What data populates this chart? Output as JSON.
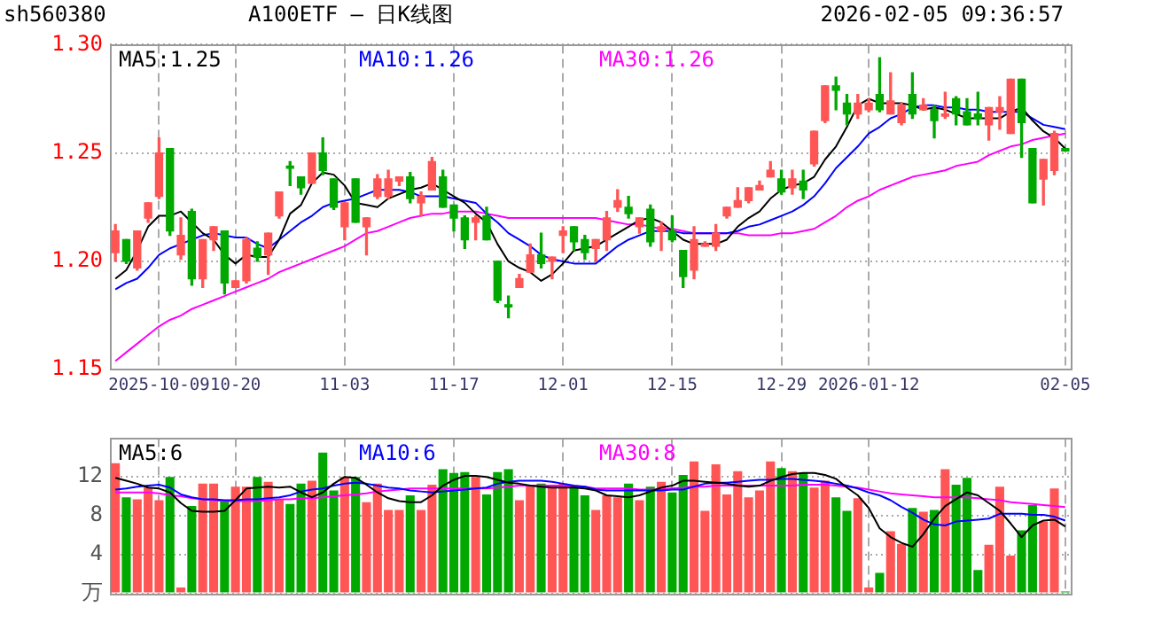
{
  "chart_data": [
    {
      "type": "candlestick",
      "title": "A100ETF — 日K线图",
      "annotations": [
        "sh560380",
        "2026-02-05 09:36:57"
      ],
      "categories": [
        null,
        null,
        null,
        null,
        "2025-10-09",
        null,
        null,
        null,
        null,
        null,
        null,
        "10-20",
        null,
        null,
        null,
        null,
        null,
        null,
        null,
        null,
        null,
        "11-03",
        null,
        null,
        null,
        null,
        null,
        null,
        null,
        null,
        null,
        "11-17",
        null,
        null,
        null,
        null,
        null,
        null,
        null,
        null,
        null,
        "12-01",
        null,
        null,
        null,
        null,
        null,
        null,
        null,
        null,
        null,
        "12-15",
        null,
        null,
        null,
        null,
        null,
        null,
        null,
        null,
        null,
        "12-29",
        null,
        null,
        null,
        null,
        null,
        null,
        null,
        "2026-01-12",
        null,
        null,
        null,
        null,
        null,
        null,
        null,
        null,
        null,
        null,
        null,
        null,
        null,
        null,
        null,
        null,
        null,
        "02-05"
      ],
      "ohlc": [
        [
          1.204,
          1.217,
          1.2,
          1.214
        ],
        [
          1.21,
          1.21,
          1.199,
          1.2
        ],
        [
          1.197,
          1.214,
          1.196,
          1.214
        ],
        [
          1.22,
          1.227,
          1.218,
          1.227
        ],
        [
          1.23,
          1.257,
          1.229,
          1.25
        ],
        [
          1.252,
          1.252,
          1.212,
          1.214
        ],
        [
          1.203,
          1.22,
          1.201,
          1.212
        ],
        [
          1.223,
          1.224,
          1.189,
          1.192
        ],
        [
          1.192,
          1.21,
          1.188,
          1.21
        ],
        [
          1.21,
          1.216,
          1.205,
          1.216
        ],
        [
          1.214,
          1.214,
          1.185,
          1.19
        ],
        [
          1.188,
          1.191,
          1.188,
          1.191
        ],
        [
          1.191,
          1.211,
          1.19,
          1.21
        ],
        [
          1.206,
          1.209,
          1.2,
          1.202
        ],
        [
          1.203,
          1.213,
          1.194,
          1.213
        ],
        [
          1.221,
          1.232,
          1.22,
          1.232
        ],
        [
          1.244,
          1.246,
          1.235,
          1.243
        ],
        [
          1.239,
          1.239,
          1.231,
          1.234
        ],
        [
          1.236,
          1.25,
          1.236,
          1.25
        ],
        [
          1.25,
          1.257,
          1.24,
          1.242
        ],
        [
          1.238,
          1.238,
          1.224,
          1.225
        ],
        [
          1.216,
          1.227,
          1.21,
          1.227
        ],
        [
          1.238,
          1.238,
          1.218,
          1.218
        ],
        [
          1.216,
          1.22,
          1.203,
          1.22
        ],
        [
          1.23,
          1.24,
          1.229,
          1.238
        ],
        [
          1.23,
          1.242,
          1.229,
          1.238
        ],
        [
          1.237,
          1.239,
          1.235,
          1.239
        ],
        [
          1.239,
          1.241,
          1.227,
          1.229
        ],
        [
          1.227,
          1.232,
          1.221,
          1.23
        ],
        [
          1.233,
          1.248,
          1.233,
          1.246
        ],
        [
          1.239,
          1.242,
          1.225,
          1.225
        ],
        [
          1.226,
          1.226,
          1.214,
          1.22
        ],
        [
          1.22,
          1.221,
          1.206,
          1.21
        ],
        [
          1.218,
          1.221,
          1.21,
          1.22
        ],
        [
          1.221,
          1.225,
          1.21,
          1.21
        ],
        [
          1.2,
          1.2,
          1.181,
          1.182
        ],
        [
          1.18,
          1.184,
          1.174,
          1.179
        ],
        [
          1.188,
          1.194,
          1.188,
          1.192
        ],
        [
          1.195,
          1.208,
          1.195,
          1.203
        ],
        [
          1.203,
          1.213,
          1.197,
          1.199
        ],
        [
          1.2,
          1.202,
          1.192,
          1.202
        ],
        [
          1.212,
          1.216,
          1.204,
          1.214
        ],
        [
          1.216,
          1.216,
          1.205,
          1.209
        ],
        [
          1.21,
          1.212,
          1.201,
          1.204
        ],
        [
          1.206,
          1.21,
          1.2,
          1.21
        ],
        [
          1.21,
          1.223,
          1.205,
          1.22
        ],
        [
          1.225,
          1.233,
          1.223,
          1.228
        ],
        [
          1.225,
          1.23,
          1.22,
          1.222
        ],
        [
          1.216,
          1.22,
          1.213,
          1.22
        ],
        [
          1.224,
          1.226,
          1.207,
          1.209
        ],
        [
          1.214,
          1.218,
          1.205,
          1.216
        ],
        [
          1.214,
          1.221,
          1.209,
          1.21
        ],
        [
          1.205,
          1.205,
          1.188,
          1.193
        ],
        [
          1.196,
          1.216,
          1.192,
          1.21
        ],
        [
          1.207,
          1.209,
          1.207,
          1.208
        ],
        [
          1.207,
          1.217,
          1.205,
          1.213
        ],
        [
          1.221,
          1.225,
          1.22,
          1.225
        ],
        [
          1.225,
          1.234,
          1.225,
          1.228
        ],
        [
          1.228,
          1.234,
          1.227,
          1.234
        ],
        [
          1.233,
          1.237,
          1.233,
          1.235
        ],
        [
          1.239,
          1.246,
          1.239,
          1.242
        ],
        [
          1.238,
          1.242,
          1.231,
          1.232
        ],
        [
          1.234,
          1.242,
          1.231,
          1.238
        ],
        [
          1.237,
          1.242,
          1.229,
          1.233
        ],
        [
          1.245,
          1.26,
          1.244,
          1.26
        ],
        [
          1.265,
          1.281,
          1.264,
          1.281
        ],
        [
          1.281,
          1.285,
          1.27,
          1.279
        ],
        [
          1.273,
          1.277,
          1.263,
          1.268
        ],
        [
          1.268,
          1.277,
          1.266,
          1.273
        ],
        [
          1.27,
          1.275,
          1.269,
          1.273
        ],
        [
          1.277,
          1.294,
          1.269,
          1.27
        ],
        [
          1.268,
          1.287,
          1.268,
          1.274
        ],
        [
          1.264,
          1.273,
          1.263,
          1.272
        ],
        [
          1.277,
          1.287,
          1.266,
          1.268
        ],
        [
          1.27,
          1.275,
          1.27,
          1.272
        ],
        [
          1.27,
          1.272,
          1.257,
          1.265
        ],
        [
          1.267,
          1.278,
          1.266,
          1.268
        ],
        [
          1.275,
          1.276,
          1.263,
          1.268
        ],
        [
          1.269,
          1.275,
          1.263,
          1.263
        ],
        [
          1.268,
          1.278,
          1.263,
          1.266
        ],
        [
          1.263,
          1.271,
          1.256,
          1.271
        ],
        [
          1.269,
          1.276,
          1.261,
          1.271
        ],
        [
          1.259,
          1.284,
          1.259,
          1.284
        ],
        [
          1.284,
          1.284,
          1.248,
          1.264
        ],
        [
          1.252,
          1.252,
          1.227,
          1.227
        ],
        [
          1.238,
          1.247,
          1.226,
          1.247
        ],
        [
          1.242,
          1.26,
          1.24,
          1.259
        ],
        [
          1.252,
          1.252,
          1.251,
          1.251
        ]
      ],
      "colors": [
        "#ff5555",
        "#00a800",
        "#ff5555",
        "#ff5555",
        "#ff5555",
        "#00a800",
        "#ff5555",
        "#00a800",
        "#ff5555",
        "#ff5555",
        "#00a800",
        "#ff5555",
        "#ff5555",
        "#00a800",
        "#ff5555",
        "#ff5555",
        "#00a800",
        "#00a800",
        "#ff5555",
        "#00a800",
        "#00a800",
        "#ff5555",
        "#00a800",
        "#ff5555",
        "#ff5555",
        "#ff5555",
        "#ff5555",
        "#00a800",
        "#ff5555",
        "#ff5555",
        "#00a800",
        "#00a800",
        "#00a800",
        "#ff5555",
        "#00a800",
        "#00a800",
        "#00a800",
        "#ff5555",
        "#ff5555",
        "#00a800",
        "#ff5555",
        "#ff5555",
        "#00a800",
        "#00a800",
        "#ff5555",
        "#ff5555",
        "#ff5555",
        "#00a800",
        "#ff5555",
        "#00a800",
        "#ff5555",
        "#00a800",
        "#00a800",
        "#ff5555",
        "#ff5555",
        "#ff5555",
        "#ff5555",
        "#ff5555",
        "#ff5555",
        "#ff5555",
        "#ff5555",
        "#00a800",
        "#ff5555",
        "#00a800",
        "#ff5555",
        "#ff5555",
        "#00a800",
        "#00a800",
        "#ff5555",
        "#ff5555",
        "#00a800",
        "#ff5555",
        "#ff5555",
        "#00a800",
        "#ff5555",
        "#00a800",
        "#ff5555",
        "#00a800",
        "#00a800",
        "#00a800",
        "#ff5555",
        "#ff5555",
        "#ff5555",
        "#00a800",
        "#00a800",
        "#ff5555",
        "#ff5555",
        "#00a800"
      ],
      "series": [
        {
          "type": "line",
          "name": "MA5:1.25",
          "color": "#000000",
          "values": [
            1.192,
            1.196,
            1.205,
            1.216,
            1.221,
            1.221,
            1.223,
            1.218,
            1.213,
            1.21,
            1.203,
            1.199,
            1.203,
            1.202,
            1.202,
            1.21,
            1.222,
            1.226,
            1.236,
            1.241,
            1.24,
            1.235,
            1.227,
            1.226,
            1.225,
            1.229,
            1.231,
            1.233,
            1.234,
            1.236,
            1.233,
            1.23,
            1.227,
            1.222,
            1.218,
            1.208,
            1.2,
            1.197,
            1.195,
            1.191,
            1.194,
            1.199,
            1.205,
            1.206,
            1.207,
            1.21,
            1.213,
            1.216,
            1.219,
            1.22,
            1.218,
            1.214,
            1.21,
            1.208,
            1.208,
            1.208,
            1.21,
            1.216,
            1.22,
            1.223,
            1.229,
            1.233,
            1.235,
            1.236,
            1.239,
            1.247,
            1.253,
            1.262,
            1.272,
            1.275,
            1.273,
            1.273,
            1.273,
            1.272,
            1.27,
            1.271,
            1.27,
            1.268,
            1.266,
            1.266,
            1.266,
            1.266,
            1.269,
            1.271,
            1.265,
            1.26,
            1.257,
            1.252
          ]
        },
        {
          "type": "line",
          "name": "MA10:1.26",
          "color": "#0000ff",
          "values": [
            1.187,
            1.19,
            1.192,
            1.197,
            1.203,
            1.206,
            1.208,
            1.21,
            1.212,
            1.213,
            1.212,
            1.211,
            1.211,
            1.208,
            1.206,
            1.21,
            1.214,
            1.218,
            1.221,
            1.225,
            1.227,
            1.228,
            1.229,
            1.231,
            1.233,
            1.233,
            1.233,
            1.232,
            1.23,
            1.23,
            1.23,
            1.229,
            1.228,
            1.227,
            1.222,
            1.218,
            1.213,
            1.21,
            1.207,
            1.203,
            1.201,
            1.2,
            1.199,
            1.199,
            1.199,
            1.203,
            1.207,
            1.21,
            1.212,
            1.214,
            1.214,
            1.214,
            1.213,
            1.213,
            1.213,
            1.213,
            1.213,
            1.214,
            1.216,
            1.217,
            1.219,
            1.221,
            1.223,
            1.226,
            1.23,
            1.236,
            1.243,
            1.248,
            1.253,
            1.259,
            1.262,
            1.266,
            1.268,
            1.271,
            1.272,
            1.272,
            1.271,
            1.271,
            1.27,
            1.27,
            1.269,
            1.269,
            1.269,
            1.269,
            1.266,
            1.263,
            1.262,
            1.261
          ]
        },
        {
          "type": "line",
          "name": "MA30:1.26",
          "color": "#ff00ff",
          "values": [
            1.154,
            1.158,
            1.162,
            1.166,
            1.17,
            1.173,
            1.175,
            1.178,
            1.18,
            1.182,
            1.184,
            1.186,
            1.188,
            1.19,
            1.192,
            1.195,
            1.197,
            1.199,
            1.201,
            1.203,
            1.205,
            1.207,
            1.21,
            1.213,
            1.214,
            1.216,
            1.218,
            1.22,
            1.221,
            1.222,
            1.222,
            1.223,
            1.223,
            1.223,
            1.222,
            1.221,
            1.22,
            1.22,
            1.22,
            1.22,
            1.22,
            1.22,
            1.22,
            1.22,
            1.22,
            1.219,
            1.218,
            1.217,
            1.217,
            1.216,
            1.215,
            1.215,
            1.214,
            1.213,
            1.213,
            1.213,
            1.213,
            1.213,
            1.212,
            1.212,
            1.212,
            1.213,
            1.213,
            1.214,
            1.215,
            1.218,
            1.221,
            1.225,
            1.228,
            1.23,
            1.233,
            1.235,
            1.237,
            1.239,
            1.24,
            1.241,
            1.242,
            1.244,
            1.245,
            1.246,
            1.249,
            1.251,
            1.253,
            1.254,
            1.256,
            1.257,
            1.258,
            1.259
          ]
        }
      ],
      "ylim": [
        1.15,
        1.3
      ],
      "yticks": [
        1.15,
        {
          "value": 1.2,
          "label": "1.20"
        },
        1.25,
        {
          "value": 1.3,
          "label": "1.30"
        }
      ],
      "grid": true,
      "legend": "top left"
    },
    {
      "type": "bar",
      "categories": [
        null,
        null,
        null,
        null,
        null,
        null,
        null,
        null,
        null,
        null,
        null,
        null,
        null,
        null,
        null,
        null,
        null,
        null,
        null,
        null,
        null,
        null,
        null,
        null,
        null,
        null,
        null,
        null,
        null,
        null,
        null,
        null,
        null,
        null,
        null,
        null,
        null,
        null,
        null,
        null,
        null,
        null,
        null,
        null,
        null,
        null,
        null,
        null,
        null,
        null,
        null,
        null,
        null,
        null,
        null,
        null,
        null,
        null,
        null,
        null,
        null,
        null,
        null,
        null,
        null,
        null,
        null,
        null,
        null,
        null,
        null,
        null,
        null,
        null,
        null,
        null,
        null,
        null,
        null,
        null,
        null,
        null,
        null,
        null,
        null,
        null,
        null,
        null
      ],
      "series": [
        {
          "type": "bar",
          "colors": [
            "#ff5555",
            "#00a800",
            "#ff5555",
            "#ff5555",
            "#ff5555",
            "#00a800",
            "#ff5555",
            "#00a800",
            "#ff5555",
            "#ff5555",
            "#00a800",
            "#ff5555",
            "#ff5555",
            "#00a800",
            "#ff5555",
            "#ff5555",
            "#00a800",
            "#00a800",
            "#ff5555",
            "#00a800",
            "#00a800",
            "#ff5555",
            "#00a800",
            "#ff5555",
            "#ff5555",
            "#ff5555",
            "#ff5555",
            "#00a800",
            "#ff5555",
            "#ff5555",
            "#00a800",
            "#00a800",
            "#00a800",
            "#ff5555",
            "#00a800",
            "#00a800",
            "#00a800",
            "#ff5555",
            "#ff5555",
            "#00a800",
            "#ff5555",
            "#ff5555",
            "#00a800",
            "#00a800",
            "#ff5555",
            "#ff5555",
            "#ff5555",
            "#00a800",
            "#ff5555",
            "#00a800",
            "#ff5555",
            "#00a800",
            "#00a800",
            "#ff5555",
            "#ff5555",
            "#ff5555",
            "#ff5555",
            "#ff5555",
            "#ff5555",
            "#ff5555",
            "#ff5555",
            "#00a800",
            "#ff5555",
            "#00a800",
            "#ff5555",
            "#ff5555",
            "#00a800",
            "#00a800",
            "#ff5555",
            "#ff5555",
            "#00a800",
            "#ff5555",
            "#ff5555",
            "#00a800",
            "#ff5555",
            "#00a800",
            "#ff5555",
            "#00a800",
            "#00a800",
            "#00a800",
            "#ff5555",
            "#ff5555",
            "#ff5555",
            "#00a800",
            "#00a800",
            "#ff5555",
            "#ff5555",
            "#00a800"
          ],
          "values": [
            13.4,
            9.9,
            9.7,
            10.9,
            9.6,
            12.0,
            0.6,
            9.0,
            11.3,
            11.3,
            9.6,
            11.0,
            11.0,
            12.0,
            11.5,
            9.7,
            9.2,
            11.3,
            11.6,
            14.5,
            10.6,
            12.0,
            12.0,
            9.4,
            11.3,
            8.6,
            8.6,
            10.1,
            8.6,
            11.2,
            12.8,
            12.4,
            12.5,
            12.0,
            10.2,
            12.5,
            12.8,
            9.6,
            11.2,
            11.3,
            11.2,
            11.3,
            11.0,
            10.1,
            8.6,
            10.1,
            9.9,
            11.3,
            9.6,
            11.0,
            11.5,
            10.4,
            12.2,
            13.6,
            8.5,
            13.3,
            10.2,
            12.6,
            9.9,
            10.6,
            13.6,
            12.9,
            12.6,
            12.4,
            10.9,
            11.6,
            9.9,
            8.5,
            9.8,
            0.6,
            2.1,
            6.4,
            5.1,
            8.8,
            8.4,
            8.6,
            12.8,
            11.2,
            11.9,
            2.4,
            5.0,
            11.0,
            3.9,
            6.5,
            9.1,
            7.4,
            10.8,
            0.2
          ]
        },
        {
          "type": "line",
          "name": "MA5:6",
          "color": "#000000",
          "values": [
            11.9,
            11.6,
            11.3,
            10.9,
            10.8,
            10.4,
            9.3,
            8.5,
            8.4,
            8.4,
            8.5,
            9.6,
            10.8,
            10.9,
            11.0,
            10.9,
            11.0,
            10.4,
            9.9,
            10.4,
            11.3,
            12.0,
            11.9,
            11.2,
            10.4,
            9.8,
            9.5,
            9.4,
            9.4,
            10.1,
            11.1,
            11.7,
            12.1,
            12.1,
            12.0,
            11.7,
            11.4,
            11.3,
            11.1,
            11.0,
            10.9,
            10.9,
            10.9,
            10.8,
            10.6,
            10.1,
            10.0,
            9.9,
            10.1,
            10.5,
            10.9,
            11.1,
            11.6,
            11.6,
            11.5,
            11.4,
            11.3,
            11.1,
            11.0,
            11.1,
            11.6,
            12.0,
            12.3,
            12.4,
            12.4,
            12.2,
            11.8,
            10.9,
            10.1,
            8.8,
            6.7,
            5.8,
            5.2,
            4.8,
            6.1,
            7.7,
            9.0,
            9.7,
            10.4,
            10.1,
            9.3,
            8.5,
            7.2,
            5.8,
            7.0,
            7.5,
            7.6,
            6.9
          ]
        },
        {
          "type": "line",
          "name": "MA10:6",
          "color": "#0000ff",
          "values": [
            10.7,
            10.8,
            11.0,
            11.1,
            11.2,
            10.9,
            10.2,
            9.9,
            9.7,
            9.7,
            9.6,
            9.6,
            9.7,
            9.7,
            9.8,
            9.9,
            10.1,
            10.5,
            10.7,
            10.8,
            11.1,
            11.3,
            11.4,
            11.3,
            11.1,
            10.9,
            10.8,
            10.6,
            10.5,
            10.4,
            10.5,
            10.6,
            10.7,
            10.8,
            10.9,
            11.3,
            11.5,
            11.6,
            11.6,
            11.6,
            11.5,
            11.3,
            11.1,
            11.0,
            10.7,
            10.6,
            10.6,
            10.6,
            10.6,
            10.6,
            10.6,
            10.7,
            10.7,
            11.0,
            11.3,
            11.4,
            11.4,
            11.5,
            11.6,
            11.7,
            11.7,
            11.8,
            11.8,
            11.7,
            11.6,
            11.5,
            11.3,
            11.1,
            10.8,
            10.4,
            10.1,
            9.6,
            8.9,
            8.3,
            7.6,
            7.1,
            7.0,
            7.4,
            7.5,
            7.6,
            7.7,
            8.2,
            8.2,
            8.2,
            8.1,
            8.1,
            7.9,
            7.5
          ]
        },
        {
          "type": "line",
          "name": "MA30:8",
          "color": "#ff00ff",
          "values": [
            10.4,
            10.4,
            10.4,
            10.4,
            10.3,
            10.1,
            10.0,
            9.8,
            9.7,
            9.6,
            9.5,
            9.5,
            9.5,
            9.5,
            9.6,
            9.7,
            9.7,
            9.8,
            9.8,
            9.9,
            10.0,
            10.1,
            10.2,
            10.3,
            10.5,
            10.6,
            10.7,
            10.8,
            10.8,
            10.8,
            10.8,
            10.8,
            10.8,
            10.8,
            10.8,
            10.9,
            11.0,
            11.1,
            11.1,
            11.1,
            11.1,
            11.1,
            11.0,
            11.0,
            10.8,
            10.8,
            10.8,
            10.8,
            10.7,
            10.7,
            10.7,
            10.8,
            10.9,
            11.0,
            11.0,
            11.1,
            11.1,
            11.1,
            11.1,
            11.1,
            11.1,
            11.1,
            11.1,
            11.2,
            11.2,
            11.2,
            11.1,
            11.0,
            10.9,
            10.7,
            10.5,
            10.3,
            10.2,
            10.1,
            10.0,
            9.9,
            9.9,
            9.9,
            9.9,
            9.8,
            9.7,
            9.6,
            9.4,
            9.3,
            9.2,
            9.1,
            9.0,
            8.9
          ]
        }
      ],
      "ylim": [
        0,
        16
      ],
      "yticks": [
        {
          "value": 0,
          "label": "万"
        },
        4,
        8,
        12
      ],
      "grid": true,
      "legend": "top left",
      "tick_labels": "y"
    }
  ]
}
